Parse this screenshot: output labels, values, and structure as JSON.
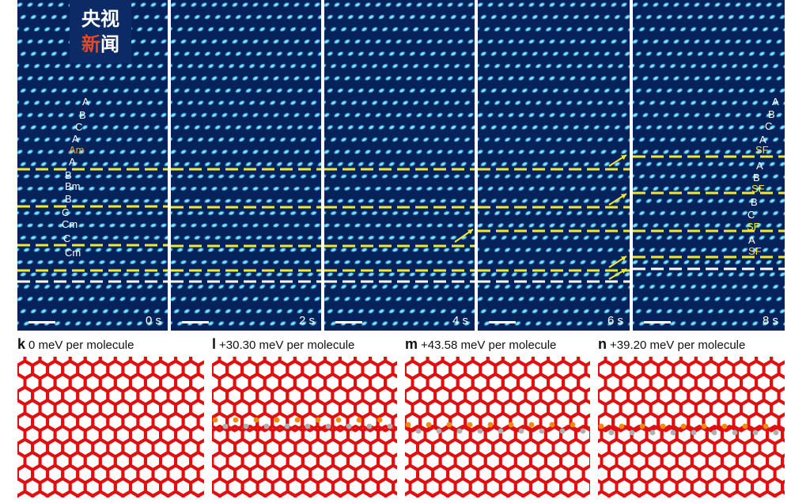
{
  "watermark": {
    "line1": "央视",
    "line2_a": "新",
    "line2_b": "闻"
  },
  "micrographs": [
    {
      "time": "0 s"
    },
    {
      "time": "2 s"
    },
    {
      "time": "4 s"
    },
    {
      "time": "6 s"
    },
    {
      "time": "8 s"
    }
  ],
  "stack_left": [
    "A",
    "B",
    "C",
    "A",
    "Am",
    "A",
    "B",
    "Bm",
    "B",
    "C",
    "Cm",
    "C",
    "Cm"
  ],
  "stack_right": [
    "A",
    "B",
    "C",
    "A",
    "SF",
    "A",
    "B",
    "SF",
    "B",
    "C",
    "SF",
    "A",
    "SF"
  ],
  "models": [
    {
      "letter": "k",
      "energy": "0 meV per molecule"
    },
    {
      "letter": "l",
      "energy": "+30.30 meV per molecule"
    },
    {
      "letter": "m",
      "energy": "+43.58 meV per molecule"
    },
    {
      "letter": "n",
      "energy": "+39.20 meV per molecule"
    }
  ],
  "colors": {
    "micrograph_bg": "#05235a",
    "spot": "#4fc3f7",
    "yellow_line": "#f2e830",
    "white_line": "#ffffff",
    "lattice_red": "#e01010",
    "lattice_orange": "#f28a10",
    "lattice_grey": "#b0b0b0"
  }
}
